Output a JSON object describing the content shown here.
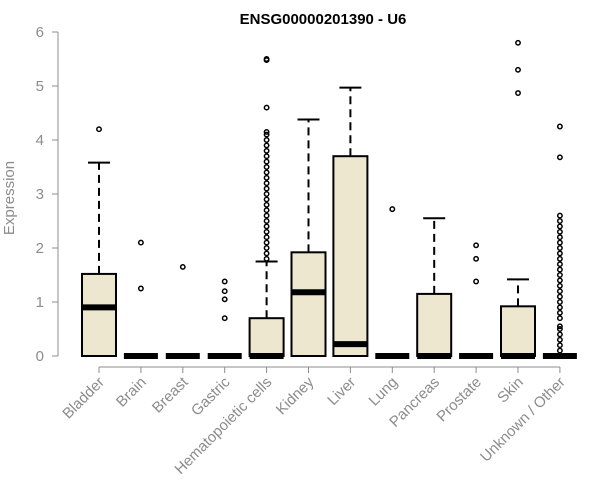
{
  "chart_data": {
    "type": "boxplot",
    "title": "ENSG00000201390 - U6",
    "xlabel": "",
    "ylabel": "Expression",
    "ylim": [
      0,
      6
    ],
    "yticks": [
      0,
      1,
      2,
      3,
      4,
      5,
      6
    ],
    "grid": false,
    "colors": {
      "box_fill": "#ede7d0",
      "box_stroke": "#000000",
      "axis": "#8c8c8c",
      "text": "#8c8c8c",
      "title": "#000000"
    },
    "categories": [
      "Bladder",
      "Brain",
      "Breast",
      "Gastric",
      "Hematopoietic cells",
      "Kidney",
      "Liver",
      "Lung",
      "Pancreas",
      "Prostate",
      "Skin",
      "Unknown / Other"
    ],
    "boxes": [
      {
        "q1": 0,
        "median": 0.9,
        "q3": 1.52,
        "whisker_low": 0,
        "whisker_high": 3.58,
        "outliers": [
          4.2
        ]
      },
      {
        "q1": 0,
        "median": 0,
        "q3": 0,
        "whisker_low": 0,
        "whisker_high": 0,
        "outliers": [
          1.25,
          2.1
        ]
      },
      {
        "q1": 0,
        "median": 0,
        "q3": 0,
        "whisker_low": 0,
        "whisker_high": 0,
        "outliers": [
          1.65
        ]
      },
      {
        "q1": 0,
        "median": 0,
        "q3": 0,
        "whisker_low": 0,
        "whisker_high": 0,
        "outliers": [
          0.7,
          1.05,
          1.2,
          1.38
        ]
      },
      {
        "q1": 0,
        "median": 0,
        "q3": 0.7,
        "whisker_low": 0,
        "whisker_high": 1.75,
        "outliers": [
          1.8,
          1.9,
          2.0,
          2.1,
          2.2,
          2.3,
          2.4,
          2.5,
          2.6,
          2.7,
          2.8,
          2.9,
          3.0,
          3.1,
          3.2,
          3.3,
          3.4,
          3.5,
          3.6,
          3.7,
          3.8,
          3.9,
          4.0,
          4.1,
          4.15,
          4.6,
          5.48,
          5.5
        ]
      },
      {
        "q1": 0,
        "median": 1.18,
        "q3": 1.92,
        "whisker_low": 0,
        "whisker_high": 4.38,
        "outliers": []
      },
      {
        "q1": 0,
        "median": 0.22,
        "q3": 3.7,
        "whisker_low": 0,
        "whisker_high": 4.97,
        "outliers": []
      },
      {
        "q1": 0,
        "median": 0,
        "q3": 0,
        "whisker_low": 0,
        "whisker_high": 0,
        "outliers": [
          2.72
        ]
      },
      {
        "q1": 0,
        "median": 0,
        "q3": 1.15,
        "whisker_low": 0,
        "whisker_high": 2.55,
        "outliers": []
      },
      {
        "q1": 0,
        "median": 0,
        "q3": 0,
        "whisker_low": 0,
        "whisker_high": 0,
        "outliers": [
          1.38,
          1.8,
          2.05
        ]
      },
      {
        "q1": 0,
        "median": 0,
        "q3": 0.92,
        "whisker_low": 0,
        "whisker_high": 1.42,
        "outliers": [
          4.87,
          5.3,
          5.8
        ]
      },
      {
        "q1": 0,
        "median": 0,
        "q3": 0,
        "whisker_low": 0,
        "whisker_high": 0,
        "outliers": [
          0.1,
          0.2,
          0.3,
          0.4,
          0.5,
          0.55,
          0.7,
          0.8,
          0.9,
          1.0,
          1.1,
          1.2,
          1.3,
          1.4,
          1.5,
          1.6,
          1.7,
          1.8,
          1.9,
          2.0,
          2.1,
          2.2,
          2.3,
          2.4,
          2.5,
          2.6,
          3.68,
          4.25
        ]
      }
    ]
  }
}
